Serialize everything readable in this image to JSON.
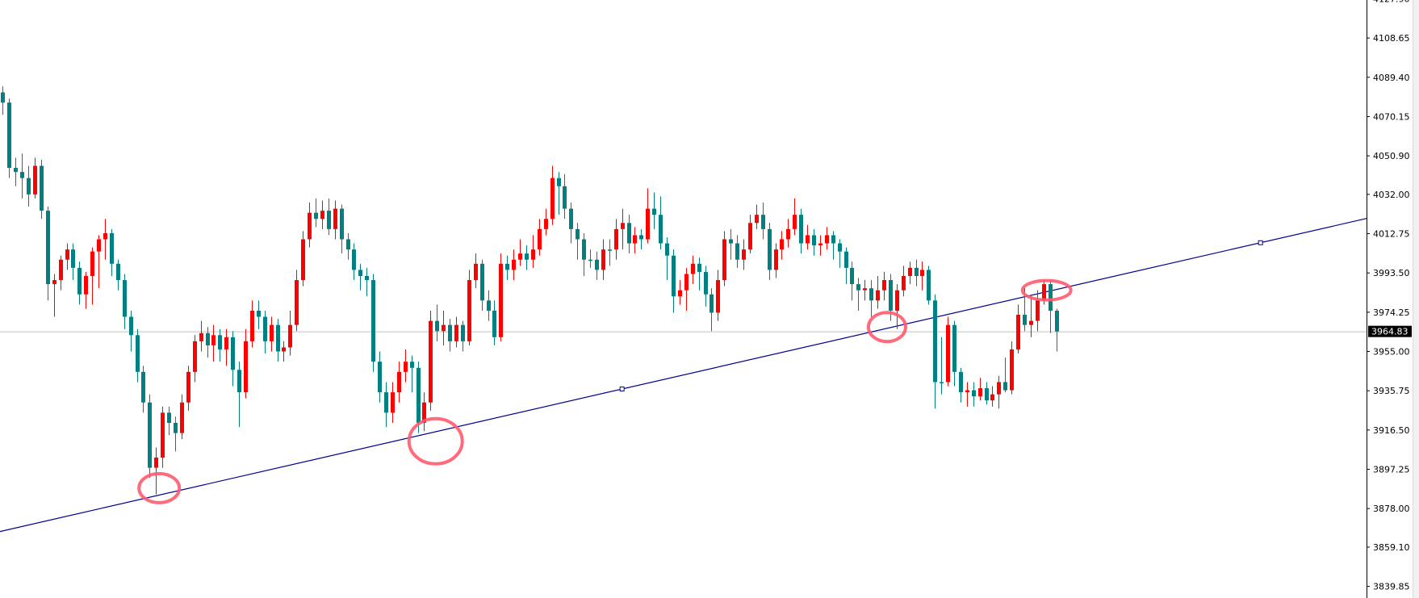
{
  "chart_data": {
    "type": "candlestick",
    "colors": {
      "bullish": "#ff0000",
      "bearish": "#008080",
      "trendline": "#00008b",
      "current_price_line": "#c0c0c0",
      "annotation": "#ff5a6e",
      "axis": "#000000"
    },
    "y_axis": {
      "position": "right",
      "range": [
        3836,
        4128
      ],
      "tick_labels": [
        "4127.90",
        "4108.65",
        "4089.40",
        "4070.15",
        "4050.90",
        "4032.00",
        "4012.75",
        "3993.50",
        "3974.25",
        "3955.00",
        "3935.75",
        "3916.50",
        "3897.25",
        "3878.00",
        "3859.10",
        "3839.85"
      ]
    },
    "current_price": "3964.83",
    "grid": false,
    "candles_ohlc": [
      [
        4082,
        4085,
        4071,
        4077
      ],
      [
        4077,
        4079,
        4040,
        4045
      ],
      [
        4045,
        4050,
        4036,
        4043
      ],
      [
        4043,
        4052,
        4030,
        4040
      ],
      [
        4040,
        4046,
        4026,
        4032
      ],
      [
        4032,
        4050,
        4030,
        4046
      ],
      [
        4046,
        4049,
        4020,
        4024
      ],
      [
        4024,
        4026,
        3980,
        3988
      ],
      [
        3988,
        3993,
        3972,
        3990
      ],
      [
        3990,
        4002,
        3985,
        4000
      ],
      [
        4000,
        4008,
        3995,
        4005
      ],
      [
        4005,
        4008,
        3990,
        3996
      ],
      [
        3996,
        3999,
        3978,
        3983
      ],
      [
        3983,
        3994,
        3976,
        3992
      ],
      [
        3992,
        4006,
        3978,
        4004
      ],
      [
        4004,
        4012,
        3986,
        4010
      ],
      [
        4010,
        4020,
        4000,
        4013
      ],
      [
        4013,
        4015,
        3992,
        3998
      ],
      [
        3998,
        4000,
        3985,
        3990
      ],
      [
        3990,
        3993,
        3966,
        3972
      ],
      [
        3972,
        3975,
        3955,
        3963
      ],
      [
        3963,
        3966,
        3940,
        3945
      ],
      [
        3945,
        3948,
        3925,
        3930
      ],
      [
        3930,
        3934,
        3893,
        3898
      ],
      [
        3898,
        3908,
        3885,
        3903
      ],
      [
        3903,
        3928,
        3898,
        3925
      ],
      [
        3925,
        3928,
        3914,
        3920
      ],
      [
        3920,
        3923,
        3906,
        3915
      ],
      [
        3915,
        3934,
        3912,
        3930
      ],
      [
        3930,
        3948,
        3926,
        3945
      ],
      [
        3945,
        3963,
        3940,
        3960
      ],
      [
        3960,
        3970,
        3955,
        3964
      ],
      [
        3964,
        3967,
        3952,
        3958
      ],
      [
        3958,
        3968,
        3950,
        3963
      ],
      [
        3963,
        3966,
        3950,
        3956
      ],
      [
        3956,
        3966,
        3948,
        3962
      ],
      [
        3962,
        3965,
        3938,
        3946
      ],
      [
        3946,
        3950,
        3918,
        3935
      ],
      [
        3935,
        3966,
        3932,
        3960
      ],
      [
        3960,
        3980,
        3957,
        3975
      ],
      [
        3975,
        3980,
        3966,
        3972
      ],
      [
        3972,
        3975,
        3954,
        3960
      ],
      [
        3960,
        3972,
        3955,
        3968
      ],
      [
        3968,
        3971,
        3950,
        3955
      ],
      [
        3955,
        3960,
        3950,
        3957
      ],
      [
        3957,
        3975,
        3953,
        3968
      ],
      [
        3968,
        3995,
        3965,
        3990
      ],
      [
        3990,
        4014,
        3987,
        4010
      ],
      [
        4010,
        4028,
        4006,
        4023
      ],
      [
        4023,
        4030,
        4016,
        4020
      ],
      [
        4020,
        4029,
        4015,
        4024
      ],
      [
        4024,
        4030,
        4012,
        4015
      ],
      [
        4015,
        4029,
        4010,
        4025
      ],
      [
        4025,
        4027,
        4003,
        4010
      ],
      [
        4010,
        4013,
        4000,
        4005
      ],
      [
        4005,
        4008,
        3990,
        3995
      ],
      [
        3995,
        3998,
        3985,
        3992
      ],
      [
        3992,
        3996,
        3982,
        3990
      ],
      [
        3990,
        3993,
        3945,
        3950
      ],
      [
        3950,
        3955,
        3930,
        3935
      ],
      [
        3935,
        3940,
        3918,
        3925
      ],
      [
        3925,
        3940,
        3920,
        3935
      ],
      [
        3935,
        3950,
        3930,
        3945
      ],
      [
        3945,
        3956,
        3940,
        3950
      ],
      [
        3950,
        3953,
        3935,
        3947
      ],
      [
        3947,
        3950,
        3915,
        3920
      ],
      [
        3920,
        3935,
        3916,
        3930
      ],
      [
        3930,
        3975,
        3926,
        3970
      ],
      [
        3970,
        3978,
        3960,
        3965
      ],
      [
        3965,
        3975,
        3958,
        3968
      ],
      [
        3968,
        3971,
        3955,
        3960
      ],
      [
        3960,
        3972,
        3957,
        3968
      ],
      [
        3968,
        3970,
        3955,
        3960
      ],
      [
        3960,
        3995,
        3958,
        3990
      ],
      [
        3990,
        4003,
        3986,
        3998
      ],
      [
        3998,
        4000,
        3975,
        3980
      ],
      [
        3980,
        3985,
        3970,
        3975
      ],
      [
        3975,
        3980,
        3958,
        3962
      ],
      [
        3962,
        4003,
        3960,
        3998
      ],
      [
        3998,
        4002,
        3990,
        3995
      ],
      [
        3995,
        4005,
        3990,
        4000
      ],
      [
        4000,
        4010,
        3997,
        4003
      ],
      [
        4003,
        4007,
        3995,
        4000
      ],
      [
        4000,
        4012,
        3996,
        4005
      ],
      [
        4005,
        4020,
        4002,
        4015
      ],
      [
        4015,
        4025,
        4012,
        4020
      ],
      [
        4020,
        4046,
        4017,
        4040
      ],
      [
        4040,
        4043,
        4022,
        4036
      ],
      [
        4036,
        4042,
        4020,
        4025
      ],
      [
        4025,
        4028,
        4008,
        4015
      ],
      [
        4015,
        4018,
        4000,
        4010
      ],
      [
        4010,
        4013,
        3992,
        4000
      ],
      [
        4000,
        4005,
        3996,
        4000
      ],
      [
        4000,
        4004,
        3990,
        3995
      ],
      [
        3995,
        4010,
        3990,
        4005
      ],
      [
        4005,
        4010,
        3997,
        4005
      ],
      [
        4005,
        4020,
        4000,
        4015
      ],
      [
        4015,
        4025,
        4005,
        4018
      ],
      [
        4018,
        4022,
        4003,
        4008
      ],
      [
        4008,
        4016,
        4003,
        4012
      ],
      [
        4012,
        4015,
        4005,
        4010
      ],
      [
        4010,
        4035,
        4008,
        4025
      ],
      [
        4025,
        4033,
        4015,
        4022
      ],
      [
        4022,
        4031,
        4005,
        4008
      ],
      [
        4008,
        4011,
        3990,
        4002
      ],
      [
        4002,
        4005,
        3974,
        3982
      ],
      [
        3982,
        3990,
        3978,
        3985
      ],
      [
        3985,
        3996,
        3975,
        3993
      ],
      [
        3993,
        4002,
        3988,
        3998
      ],
      [
        3998,
        4001,
        3985,
        3994
      ],
      [
        3994,
        3997,
        3977,
        3983
      ],
      [
        3983,
        3986,
        3965,
        3974
      ],
      [
        3974,
        3995,
        3970,
        3990
      ],
      [
        3990,
        4014,
        3987,
        4010
      ],
      [
        4010,
        4015,
        4000,
        4008
      ],
      [
        4008,
        4012,
        3996,
        4000
      ],
      [
        4000,
        4010,
        3995,
        4005
      ],
      [
        4005,
        4022,
        4003,
        4018
      ],
      [
        4018,
        4027,
        4015,
        4022
      ],
      [
        4022,
        4028,
        4010,
        4015
      ],
      [
        4015,
        4018,
        3990,
        3995
      ],
      [
        3995,
        4008,
        3991,
        4005
      ],
      [
        4005,
        4014,
        4000,
        4010
      ],
      [
        4010,
        4020,
        4006,
        4015
      ],
      [
        4015,
        4030,
        4012,
        4022
      ],
      [
        4022,
        4025,
        4003,
        4008
      ],
      [
        4008,
        4017,
        4005,
        4012
      ],
      [
        4012,
        4015,
        4002,
        4007
      ],
      [
        4007,
        4012,
        4002,
        4008
      ],
      [
        4008,
        4016,
        4005,
        4012
      ],
      [
        4012,
        4014,
        4000,
        4008
      ],
      [
        4008,
        4010,
        3996,
        4004
      ],
      [
        4004,
        4006,
        3988,
        3996
      ],
      [
        3996,
        3999,
        3980,
        3988
      ],
      [
        3988,
        3991,
        3975,
        3985
      ],
      [
        3985,
        3990,
        3980,
        3986
      ],
      [
        3986,
        3990,
        3972,
        3980
      ],
      [
        3980,
        3992,
        3976,
        3985
      ],
      [
        3985,
        3994,
        3980,
        3990
      ],
      [
        3990,
        3993,
        3970,
        3975
      ],
      [
        3975,
        3988,
        3966,
        3985
      ],
      [
        3985,
        3997,
        3982,
        3992
      ],
      [
        3992,
        3999,
        3988,
        3996
      ],
      [
        3996,
        4000,
        3987,
        3992
      ],
      [
        3992,
        3999,
        3985,
        3995
      ],
      [
        3995,
        3997,
        3978,
        3980
      ],
      [
        3980,
        3983,
        3927,
        3940
      ],
      [
        3940,
        3962,
        3934,
        3940
      ],
      [
        3940,
        3972,
        3938,
        3968
      ],
      [
        3968,
        3970,
        3938,
        3945
      ],
      [
        3945,
        3947,
        3930,
        3935
      ],
      [
        3935,
        3940,
        3928,
        3936
      ],
      [
        3936,
        3940,
        3928,
        3933
      ],
      [
        3933,
        3942,
        3931,
        3937
      ],
      [
        3937,
        3940,
        3929,
        3931
      ],
      [
        3931,
        3938,
        3928,
        3934
      ],
      [
        3934,
        3943,
        3927,
        3940
      ],
      [
        3940,
        3952,
        3935,
        3936
      ],
      [
        3936,
        3960,
        3934,
        3956
      ],
      [
        3956,
        3978,
        3954,
        3973
      ],
      [
        3973,
        3986,
        3965,
        3968
      ],
      [
        3968,
        3982,
        3962,
        3970
      ],
      [
        3970,
        3985,
        3965,
        3980
      ],
      [
        3980,
        3990,
        3978,
        3988
      ],
      [
        3988,
        3990,
        3964,
        3975
      ],
      [
        3975,
        3976,
        3955,
        3964.83
      ]
    ],
    "trendline": {
      "points": [
        {
          "candle_index": 97,
          "price": 3936.6
        },
        {
          "candle_index": 197,
          "price": 4008.3
        }
      ],
      "extended": "both"
    },
    "annotations": [
      {
        "type": "ellipse",
        "candle_index": 24.5,
        "price": 3888
      },
      {
        "type": "ellipse",
        "candle_index": 67.8,
        "price": 3911
      },
      {
        "type": "ellipse",
        "candle_index": 138.5,
        "price": 3967
      },
      {
        "type": "ellipse",
        "candle_index": 163.5,
        "price": 3985
      }
    ]
  }
}
